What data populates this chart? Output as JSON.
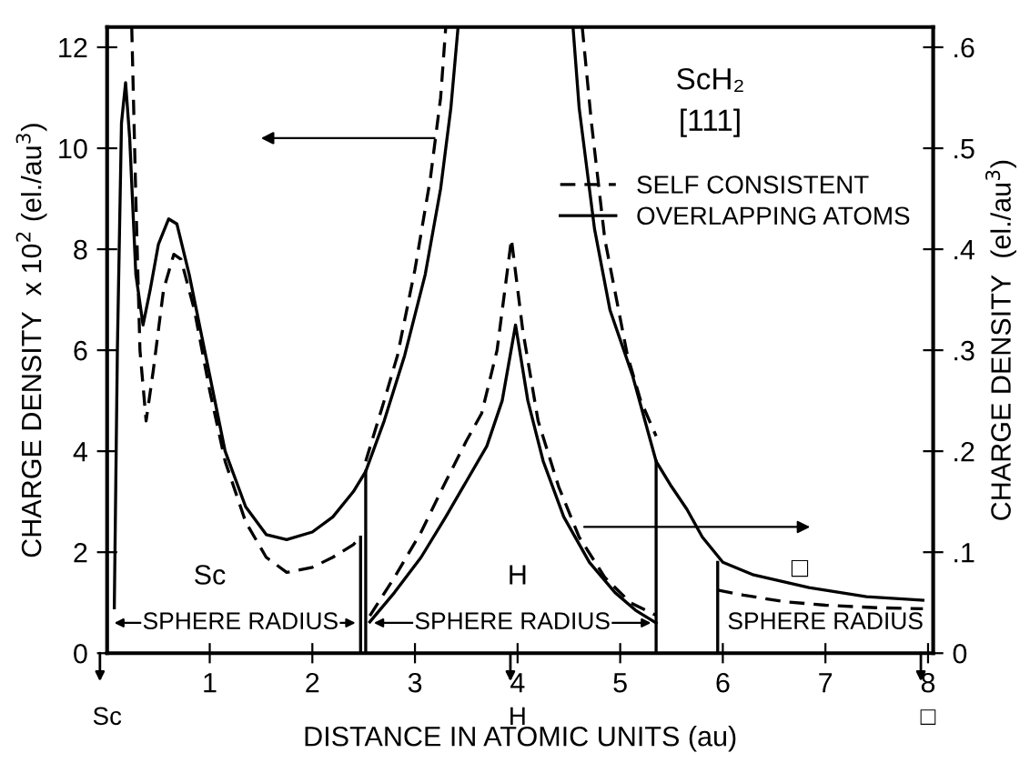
{
  "chart_data": {
    "type": "line",
    "xlabel": "DISTANCE IN ATOMIC UNITS (au)",
    "ylabel": "CHARGE DENSITY  x 10$^{2}$ (el./au$^{3}$)",
    "y2label": "CHARGE DENSITY  (el./au$^{3}$)",
    "xlim": [
      0,
      8.05
    ],
    "xticks": [
      1,
      2,
      3,
      4,
      5,
      6,
      7,
      8
    ],
    "ylim": [
      0,
      12.4
    ],
    "yticks": [
      0,
      2,
      4,
      6,
      8,
      10,
      12
    ],
    "y2lim": [
      0,
      0.62
    ],
    "y2ticks": [
      {
        "value": 0,
        "label": "0"
      },
      {
        "value": 0.1,
        "label": ".1"
      },
      {
        "value": 0.2,
        "label": ".2"
      },
      {
        "value": 0.3,
        "label": ".3"
      },
      {
        "value": 0.4,
        "label": ".4"
      },
      {
        "value": 0.5,
        "label": ".5"
      },
      {
        "value": 0.6,
        "label": ".6"
      }
    ],
    "grid": false,
    "legend": "top right",
    "marker": "none",
    "series": [
      {
        "name": "SELF CONSISTENT",
        "color": "#000000",
        "line_style": "dashed",
        "x": [
          0.24,
          0.28,
          0.32,
          0.38,
          0.45,
          0.55,
          0.65,
          0.72,
          0.85,
          1.0,
          1.15,
          1.35,
          1.55,
          1.75,
          2.0,
          2.2,
          2.4,
          2.47
        ],
        "values": [
          12.4,
          9,
          6,
          4.6,
          5.6,
          7.2,
          7.9,
          7.8,
          6.8,
          5.2,
          3.8,
          2.6,
          1.9,
          1.6,
          1.7,
          1.9,
          2.15,
          2.3
        ]
      },
      {
        "name": "OVERLAPPING ATOMS",
        "color": "#000000",
        "line_style": "solid",
        "x": [
          0.07,
          0.1,
          0.14,
          0.18,
          0.22,
          0.28,
          0.35,
          0.42,
          0.5,
          0.6,
          0.68,
          0.8,
          0.95,
          1.15,
          1.35,
          1.55,
          1.75,
          2.0,
          2.2,
          2.4,
          2.52,
          2.7,
          2.9,
          3.1,
          3.25,
          3.35,
          3.42
        ],
        "values": [
          0.9,
          6,
          10.5,
          11.3,
          10.2,
          7.5,
          6.5,
          7.2,
          8.1,
          8.6,
          8.5,
          7.5,
          6,
          4,
          2.9,
          2.35,
          2.25,
          2.4,
          2.7,
          3.2,
          3.6,
          4.6,
          5.9,
          7.5,
          9.2,
          10.8,
          12.4
        ]
      },
      {
        "color": "#000000",
        "line_style": "dashed",
        "x": [
          2.52,
          2.7,
          2.83,
          3.0,
          3.15,
          3.25,
          3.3
        ],
        "values": [
          3.8,
          5.0,
          5.9,
          7.6,
          9.4,
          11,
          12.4
        ]
      },
      {
        "color": "#000000",
        "line_style": "dashed",
        "x": [
          4.63,
          4.72,
          4.85,
          5.07,
          5.2,
          5.35
        ],
        "values": [
          12.4,
          10.5,
          8.2,
          5.9,
          5.0,
          4.3
        ]
      },
      {
        "color": "#000000",
        "line_style": "solid",
        "x": [
          4.54,
          4.6,
          4.75,
          4.9,
          5.12,
          5.35,
          5.5,
          5.65,
          5.8,
          6.0,
          6.3,
          6.84,
          7.4,
          7.95
        ],
        "values": [
          12.4,
          10.8,
          8.4,
          6.8,
          5.5,
          3.8,
          3.3,
          2.85,
          2.3,
          1.8,
          1.55,
          1.3,
          1.12,
          1.05
        ]
      },
      {
        "color": "#000000",
        "line_style": "dashed",
        "x": [
          5.95,
          6.2,
          6.6,
          7.0,
          7.5,
          7.95
        ],
        "values": [
          1.25,
          1.15,
          1.02,
          0.95,
          0.9,
          0.88
        ]
      },
      {
        "color": "#000000",
        "line_style": "dashed",
        "x": [
          2.56,
          2.8,
          3.06,
          3.3,
          3.5,
          3.65,
          3.8,
          3.94,
          4.05,
          4.2,
          4.4,
          4.6,
          4.85,
          5.1,
          5.35
        ],
        "values": [
          0.74,
          1.5,
          2.4,
          3.4,
          4.2,
          4.75,
          6,
          8.2,
          6.4,
          4.6,
          3.3,
          2.3,
          1.5,
          1.0,
          0.75
        ]
      },
      {
        "color": "#000000",
        "line_style": "solid",
        "x": [
          2.56,
          2.8,
          3.06,
          3.3,
          3.5,
          3.7,
          3.85,
          3.98,
          4.1,
          4.25,
          4.45,
          4.7,
          4.95,
          5.15,
          5.35
        ],
        "values": [
          0.62,
          1.2,
          1.9,
          2.7,
          3.4,
          4.1,
          5.0,
          6.5,
          5.0,
          3.8,
          2.7,
          1.8,
          1.2,
          0.85,
          0.6
        ]
      },
      {
        "color": "#000000",
        "line_style": "solid",
        "x": [
          2.47,
          2.47
        ],
        "values": [
          2.3,
          0
        ]
      },
      {
        "color": "#000000",
        "line_style": "solid",
        "x": [
          2.52,
          2.52
        ],
        "values": [
          3.6,
          0
        ]
      },
      {
        "color": "#000000",
        "line_style": "solid",
        "x": [
          5.35,
          5.35
        ],
        "values": [
          3.8,
          0
        ]
      },
      {
        "color": "#000000",
        "line_style": "solid",
        "x": [
          5.95,
          5.95
        ],
        "values": [
          1.8,
          0
        ]
      }
    ],
    "annotations": [
      "ScH₂\n[111]",
      "Sc",
      "SPHERE RADIUS",
      "H",
      "SPHERE RADIUS",
      "□",
      "SPHERE RADIUS",
      "Sc",
      "H",
      "□"
    ]
  }
}
